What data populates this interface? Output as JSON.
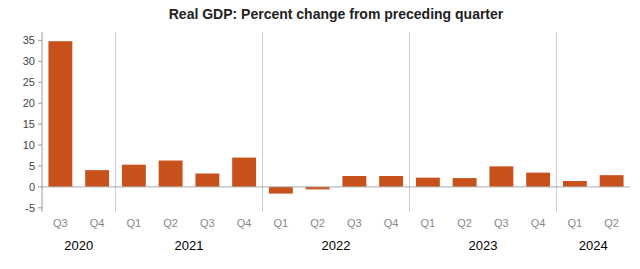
{
  "chart_data": {
    "type": "bar",
    "title": "Real GDP: Percent change from preceding quarter",
    "categories": [
      "Q3",
      "Q4",
      "Q1",
      "Q2",
      "Q3",
      "Q4",
      "Q1",
      "Q2",
      "Q3",
      "Q4",
      "Q1",
      "Q2",
      "Q3",
      "Q4",
      "Q1",
      "Q2"
    ],
    "values": [
      34.8,
      4.0,
      5.3,
      6.3,
      3.2,
      7.0,
      -1.6,
      -0.6,
      2.6,
      2.6,
      2.2,
      2.1,
      4.9,
      3.4,
      1.4,
      2.8
    ],
    "color": "#C8511B",
    "ylim": [
      -6,
      37
    ],
    "yticks": [
      -5,
      0,
      5,
      10,
      15,
      20,
      25,
      30,
      35
    ],
    "grid": false,
    "annotations": [
      {
        "text": "2020",
        "from": 0,
        "to": 1
      },
      {
        "text": "2021",
        "from": 2,
        "to": 5
      },
      {
        "text": "2022",
        "from": 6,
        "to": 9
      },
      {
        "text": "2023",
        "from": 10,
        "to": 13
      },
      {
        "text": "2024",
        "from": 14,
        "to": 15
      }
    ]
  }
}
